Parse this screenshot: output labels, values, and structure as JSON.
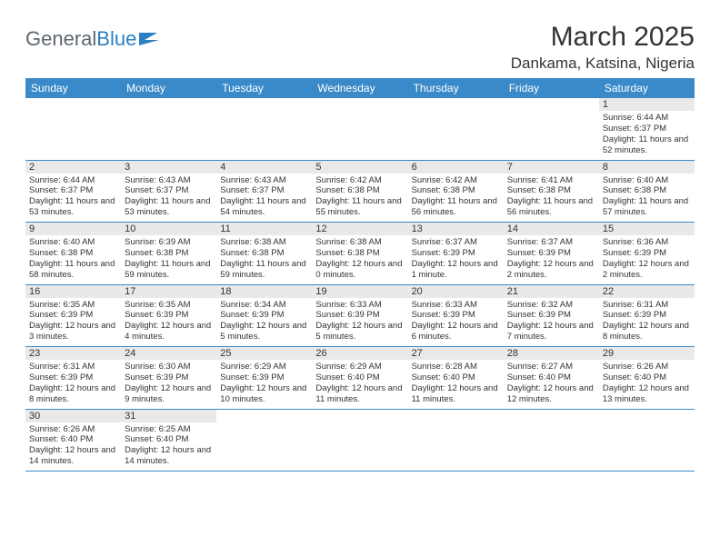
{
  "brand": {
    "part1": "General",
    "part2": "Blue"
  },
  "title": "March 2025",
  "location": "Dankama, Katsina, Nigeria",
  "colors": {
    "header_bg": "#3a8ac9",
    "header_fg": "#ffffff",
    "daynum_bg": "#e9e9e9",
    "border": "#3a8ac9",
    "logo_gray": "#5d6770",
    "logo_blue": "#2b7fc3",
    "text": "#333333"
  },
  "weekdays": [
    "Sunday",
    "Monday",
    "Tuesday",
    "Wednesday",
    "Thursday",
    "Friday",
    "Saturday"
  ],
  "weeks": [
    [
      null,
      null,
      null,
      null,
      null,
      null,
      {
        "n": "1",
        "sr": "6:44 AM",
        "ss": "6:37 PM",
        "dl": "11 hours and 52 minutes."
      }
    ],
    [
      {
        "n": "2",
        "sr": "6:44 AM",
        "ss": "6:37 PM",
        "dl": "11 hours and 53 minutes."
      },
      {
        "n": "3",
        "sr": "6:43 AM",
        "ss": "6:37 PM",
        "dl": "11 hours and 53 minutes."
      },
      {
        "n": "4",
        "sr": "6:43 AM",
        "ss": "6:37 PM",
        "dl": "11 hours and 54 minutes."
      },
      {
        "n": "5",
        "sr": "6:42 AM",
        "ss": "6:38 PM",
        "dl": "11 hours and 55 minutes."
      },
      {
        "n": "6",
        "sr": "6:42 AM",
        "ss": "6:38 PM",
        "dl": "11 hours and 56 minutes."
      },
      {
        "n": "7",
        "sr": "6:41 AM",
        "ss": "6:38 PM",
        "dl": "11 hours and 56 minutes."
      },
      {
        "n": "8",
        "sr": "6:40 AM",
        "ss": "6:38 PM",
        "dl": "11 hours and 57 minutes."
      }
    ],
    [
      {
        "n": "9",
        "sr": "6:40 AM",
        "ss": "6:38 PM",
        "dl": "11 hours and 58 minutes."
      },
      {
        "n": "10",
        "sr": "6:39 AM",
        "ss": "6:38 PM",
        "dl": "11 hours and 59 minutes."
      },
      {
        "n": "11",
        "sr": "6:38 AM",
        "ss": "6:38 PM",
        "dl": "11 hours and 59 minutes."
      },
      {
        "n": "12",
        "sr": "6:38 AM",
        "ss": "6:38 PM",
        "dl": "12 hours and 0 minutes."
      },
      {
        "n": "13",
        "sr": "6:37 AM",
        "ss": "6:39 PM",
        "dl": "12 hours and 1 minute."
      },
      {
        "n": "14",
        "sr": "6:37 AM",
        "ss": "6:39 PM",
        "dl": "12 hours and 2 minutes."
      },
      {
        "n": "15",
        "sr": "6:36 AM",
        "ss": "6:39 PM",
        "dl": "12 hours and 2 minutes."
      }
    ],
    [
      {
        "n": "16",
        "sr": "6:35 AM",
        "ss": "6:39 PM",
        "dl": "12 hours and 3 minutes."
      },
      {
        "n": "17",
        "sr": "6:35 AM",
        "ss": "6:39 PM",
        "dl": "12 hours and 4 minutes."
      },
      {
        "n": "18",
        "sr": "6:34 AM",
        "ss": "6:39 PM",
        "dl": "12 hours and 5 minutes."
      },
      {
        "n": "19",
        "sr": "6:33 AM",
        "ss": "6:39 PM",
        "dl": "12 hours and 5 minutes."
      },
      {
        "n": "20",
        "sr": "6:33 AM",
        "ss": "6:39 PM",
        "dl": "12 hours and 6 minutes."
      },
      {
        "n": "21",
        "sr": "6:32 AM",
        "ss": "6:39 PM",
        "dl": "12 hours and 7 minutes."
      },
      {
        "n": "22",
        "sr": "6:31 AM",
        "ss": "6:39 PM",
        "dl": "12 hours and 8 minutes."
      }
    ],
    [
      {
        "n": "23",
        "sr": "6:31 AM",
        "ss": "6:39 PM",
        "dl": "12 hours and 8 minutes."
      },
      {
        "n": "24",
        "sr": "6:30 AM",
        "ss": "6:39 PM",
        "dl": "12 hours and 9 minutes."
      },
      {
        "n": "25",
        "sr": "6:29 AM",
        "ss": "6:39 PM",
        "dl": "12 hours and 10 minutes."
      },
      {
        "n": "26",
        "sr": "6:29 AM",
        "ss": "6:40 PM",
        "dl": "12 hours and 11 minutes."
      },
      {
        "n": "27",
        "sr": "6:28 AM",
        "ss": "6:40 PM",
        "dl": "12 hours and 11 minutes."
      },
      {
        "n": "28",
        "sr": "6:27 AM",
        "ss": "6:40 PM",
        "dl": "12 hours and 12 minutes."
      },
      {
        "n": "29",
        "sr": "6:26 AM",
        "ss": "6:40 PM",
        "dl": "12 hours and 13 minutes."
      }
    ],
    [
      {
        "n": "30",
        "sr": "6:26 AM",
        "ss": "6:40 PM",
        "dl": "12 hours and 14 minutes."
      },
      {
        "n": "31",
        "sr": "6:25 AM",
        "ss": "6:40 PM",
        "dl": "12 hours and 14 minutes."
      },
      null,
      null,
      null,
      null,
      null
    ]
  ],
  "labels": {
    "sunrise": "Sunrise:",
    "sunset": "Sunset:",
    "daylight": "Daylight:"
  }
}
